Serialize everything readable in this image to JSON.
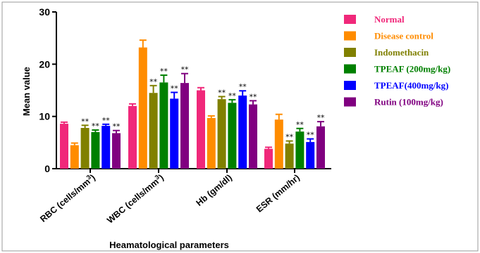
{
  "chart_data": {
    "type": "bar",
    "categories": [
      "RBC (cells/mm³)",
      "WBC (cells/mm³)",
      "Hb (gm/dl)",
      "ESR (mm/hr)"
    ],
    "category_labels": [
      {
        "main": "RBC (cells/mm",
        "sup": "3",
        "end": ")"
      },
      {
        "main": "WBC (cells/mm",
        "sup": "3",
        "end": ")"
      },
      {
        "main": "Hb (gm/dl)",
        "sup": "",
        "end": ""
      },
      {
        "main": "ESR (mm/hr)",
        "sup": "",
        "end": ""
      }
    ],
    "series": [
      {
        "name": "Normal",
        "color": "#f0287a",
        "values": [
          8.6,
          12.0,
          15.0,
          3.8
        ],
        "errors": [
          0.3,
          0.4,
          0.5,
          0.3
        ],
        "marks": [
          "",
          "",
          "",
          ""
        ]
      },
      {
        "name": "Disease control",
        "color": "#ff8c00",
        "values": [
          4.5,
          23.2,
          9.7,
          9.4
        ],
        "errors": [
          0.4,
          1.4,
          0.4,
          1.0
        ],
        "marks": [
          "",
          "",
          "",
          ""
        ]
      },
      {
        "name": "Indomethacin",
        "color": "#808000",
        "values": [
          7.8,
          14.5,
          13.3,
          4.8
        ],
        "errors": [
          0.5,
          1.4,
          0.5,
          0.5
        ],
        "marks": [
          "**",
          "**",
          "**",
          "**"
        ]
      },
      {
        "name": "TPEAF (200mg/kg)",
        "color": "#008000",
        "values": [
          7.0,
          16.5,
          12.6,
          7.1
        ],
        "errors": [
          0.4,
          1.4,
          0.6,
          0.6
        ],
        "marks": [
          "**",
          "**",
          "**",
          "**"
        ]
      },
      {
        "name": "TPEAF(400mg/kg)",
        "color": "#0000ff",
        "values": [
          8.2,
          13.4,
          14.0,
          5.1
        ],
        "errors": [
          0.3,
          1.2,
          0.9,
          0.6
        ],
        "marks": [
          "**",
          "**",
          "**",
          "**"
        ]
      },
      {
        "name": "Rutin (100mg/kg)",
        "color": "#800080",
        "values": [
          6.8,
          16.4,
          12.3,
          8.1
        ],
        "errors": [
          0.5,
          1.8,
          0.7,
          0.9
        ],
        "marks": [
          "**",
          "**",
          "**",
          "**"
        ]
      }
    ],
    "xlabel": "Heamatological parameters",
    "ylabel": "Mean value",
    "ylim": [
      0,
      30
    ],
    "yticks": [
      0,
      10,
      20,
      30
    ],
    "grid": false,
    "legend_position": "right"
  }
}
